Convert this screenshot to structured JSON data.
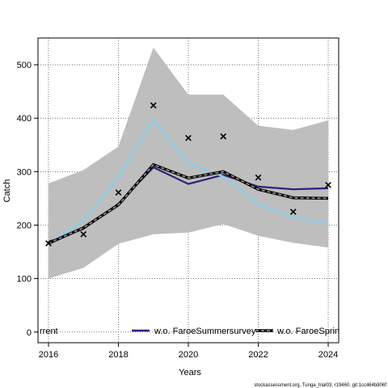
{
  "chart_data": {
    "type": "line",
    "xlabel": "Years",
    "ylabel": "Catch",
    "xlim": [
      2015.7,
      2024.3
    ],
    "ylim": [
      -20,
      550
    ],
    "x_ticks": [
      2016,
      2018,
      2020,
      2022,
      2024
    ],
    "y_ticks": [
      0,
      100,
      200,
      300,
      400,
      500
    ],
    "grid": true,
    "x": [
      2016,
      2017,
      2018,
      2019,
      2020,
      2021,
      2022,
      2023,
      2024
    ],
    "band": {
      "color": "#bebebe",
      "lower": [
        100,
        120,
        165,
        183,
        186,
        202,
        180,
        167,
        158
      ],
      "upper": [
        278,
        303,
        347,
        532,
        444,
        444,
        386,
        378,
        396
      ]
    },
    "series": [
      {
        "name": "w.o. FaroeSummersurvey",
        "color": "#2e1f7a",
        "style": "solid",
        "values": [
          169,
          193,
          240,
          308,
          277,
          294,
          272,
          267,
          269
        ]
      },
      {
        "name": "w.o. FaroeSpring",
        "color": "#87ceeb",
        "style": "solid",
        "values": [
          166,
          207,
          290,
          398,
          315,
          291,
          240,
          215,
          202
        ]
      },
      {
        "name": "Current",
        "color": "#000000",
        "style": "dashed",
        "values": [
          166,
          195,
          238,
          313,
          288,
          300,
          267,
          251,
          250
        ]
      }
    ],
    "observations": {
      "marker": "x",
      "values": [
        166,
        183,
        261,
        424,
        363,
        366,
        289,
        225,
        275
      ]
    },
    "legend": {
      "placement": "bottom",
      "entries": [
        "rrent",
        "w.o. FaroeSummersurvey",
        "w.o. FaroeSpring"
      ]
    }
  },
  "footer": "stockassessment.org, Tunga_trial03, r19460, git:1cc464b806f"
}
